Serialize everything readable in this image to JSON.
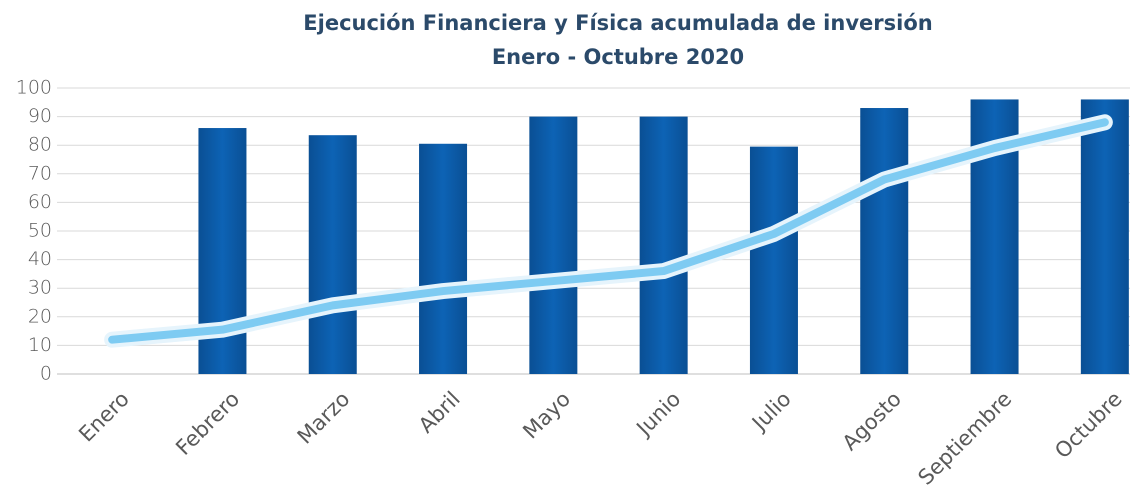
{
  "chart_data": {
    "type": "bar",
    "title": "Ejecución Financiera y Física acumulada de inversión",
    "subtitle": "Enero - Octubre 2020",
    "categories": [
      "Enero",
      "Febrero",
      "Marzo",
      "Abril",
      "Mayo",
      "Junio",
      "Julio",
      "Agosto",
      "Septiembre",
      "Octubre"
    ],
    "series": [
      {
        "type": "bar",
        "color": "#0a5aa5",
        "values": [
          null,
          86,
          83.5,
          80.5,
          90,
          90,
          79.5,
          93,
          96,
          96
        ]
      },
      {
        "type": "line",
        "color": "#7ecbf2",
        "values": [
          12,
          15.5,
          24,
          29,
          32.5,
          36,
          49,
          68,
          79,
          88
        ]
      }
    ],
    "ylim": [
      0,
      100
    ],
    "yticks": [
      0,
      10,
      20,
      30,
      40,
      50,
      60,
      70,
      80,
      90,
      100
    ],
    "grid": true
  }
}
